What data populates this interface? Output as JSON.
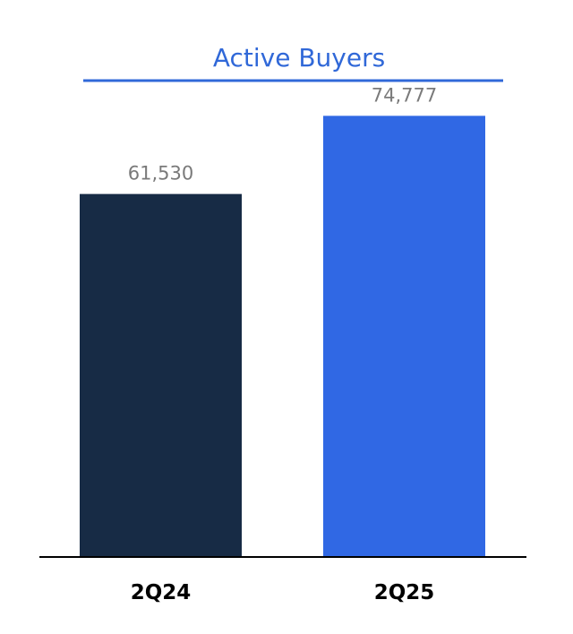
{
  "chart_data": {
    "type": "bar",
    "title": "Active Buyers",
    "categories": [
      "2Q24",
      "2Q25"
    ],
    "values": [
      61530,
      74777
    ],
    "value_labels": [
      "61,530",
      "74,777"
    ],
    "bar_colors": [
      "#172b45",
      "#3068e4"
    ],
    "title_color": "#3068d8",
    "ylim": [
      0,
      85000
    ],
    "xlabel": "",
    "ylabel": "",
    "grid": false
  }
}
